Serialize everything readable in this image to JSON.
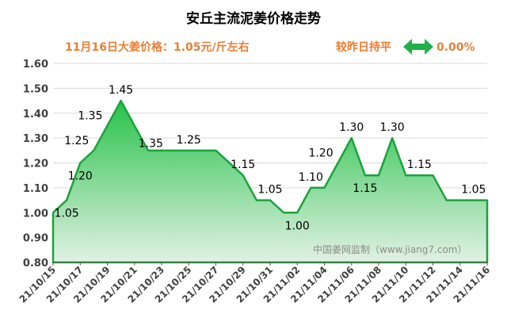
{
  "chart_data": {
    "type": "area",
    "title": "安丘主流泥姜价格走势",
    "subtitle": "11月16日大姜价格：1.05元/斤左右",
    "change_text": "较昨日持平",
    "change_value": "0.00%",
    "watermark": "中国姜网监制（www.jiang7.com）",
    "xlabel": "",
    "ylabel": "",
    "ylim": [
      0.8,
      1.6
    ],
    "yticks": [
      "0.80",
      "0.90",
      "1.00",
      "1.10",
      "1.20",
      "1.30",
      "1.40",
      "1.50",
      "1.60"
    ],
    "grid": true,
    "legend": "none",
    "x": [
      "21/10/15",
      "21/10/16",
      "21/10/17",
      "21/10/18",
      "21/10/19",
      "21/10/20",
      "21/10/21",
      "21/10/22",
      "21/10/23",
      "21/10/24",
      "21/10/25",
      "21/10/26",
      "21/10/27",
      "21/10/28",
      "21/10/29",
      "21/10/30",
      "21/10/31",
      "21/11/01",
      "21/11/02",
      "21/11/03",
      "21/11/04",
      "21/11/05",
      "21/11/06",
      "21/11/07",
      "21/11/08",
      "21/11/09",
      "21/11/10",
      "21/11/11",
      "21/11/12",
      "21/11/13",
      "21/11/14",
      "21/11/15",
      "21/11/16"
    ],
    "x_tick_labels": [
      "21/10/15",
      "21/10/17",
      "21/10/19",
      "21/10/21",
      "21/10/23",
      "21/10/25",
      "21/10/27",
      "21/10/29",
      "21/10/31",
      "21/11/02",
      "21/11/04",
      "21/11/06",
      "21/11/08",
      "21/11/10",
      "21/11/12",
      "21/11/14",
      "21/11/16"
    ],
    "values": [
      1.0,
      1.05,
      1.2,
      1.25,
      1.35,
      1.45,
      1.35,
      1.25,
      1.25,
      1.25,
      1.25,
      1.25,
      1.25,
      1.2,
      1.15,
      1.05,
      1.05,
      1.0,
      1.0,
      1.1,
      1.1,
      1.2,
      1.3,
      1.15,
      1.15,
      1.3,
      1.15,
      1.15,
      1.15,
      1.05,
      1.05,
      1.05,
      1.05
    ],
    "data_labels": [
      {
        "index": 1,
        "text": "1.05",
        "pos": "below"
      },
      {
        "index": 2,
        "text": "1.20",
        "pos": "below"
      },
      {
        "index": 3,
        "text": "1.25",
        "pos": "above-left"
      },
      {
        "index": 4,
        "text": "1.35",
        "pos": "above-left"
      },
      {
        "index": 5,
        "text": "1.45",
        "pos": "above"
      },
      {
        "index": 6,
        "text": "1.35",
        "pos": "right"
      },
      {
        "index": 10,
        "text": "1.25",
        "pos": "above"
      },
      {
        "index": 14,
        "text": "1.15",
        "pos": "above"
      },
      {
        "index": 16,
        "text": "1.05",
        "pos": "above"
      },
      {
        "index": 18,
        "text": "1.00",
        "pos": "below"
      },
      {
        "index": 19,
        "text": "1.10",
        "pos": "above"
      },
      {
        "index": 21,
        "text": "1.20",
        "pos": "above-left"
      },
      {
        "index": 22,
        "text": "1.30",
        "pos": "above"
      },
      {
        "index": 23,
        "text": "1.15",
        "pos": "below"
      },
      {
        "index": 25,
        "text": "1.30",
        "pos": "above"
      },
      {
        "index": 27,
        "text": "1.15",
        "pos": "above"
      },
      {
        "index": 31,
        "text": "1.05",
        "pos": "above"
      }
    ],
    "colors": {
      "line": "#1aa33a",
      "fill_top": "#28c24a",
      "fill_bottom": "#e2f1e4",
      "title": "#000000",
      "subtitle": "#ed7d31",
      "arrow": "#21b04b",
      "grid": "#d9d9d9",
      "watermark": "#8c8c8c"
    }
  }
}
